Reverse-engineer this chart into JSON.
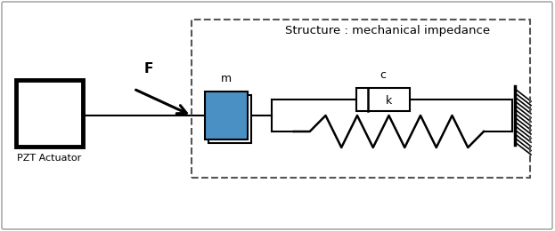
{
  "title": "Structure : mechanical impedance",
  "label_pzt": "PZT Actuator",
  "label_m": "m",
  "label_c": "c",
  "label_k": "k",
  "label_F": "F",
  "bg_color": "#ffffff",
  "mass_color": "#4a90c4",
  "line_color": "#000000",
  "dashed_color": "#555555",
  "figsize": [
    6.23,
    2.6
  ],
  "dpi": 100
}
